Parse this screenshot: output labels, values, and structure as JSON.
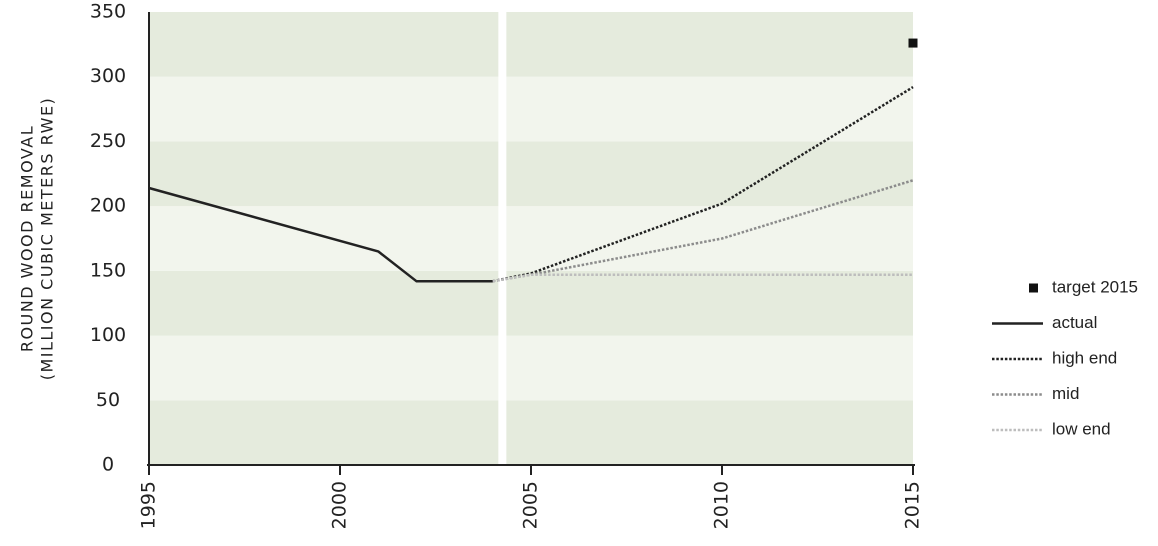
{
  "chart_data": {
    "type": "line",
    "ylabel_lines": [
      "ROUND WOOD REMOVAL",
      "(MILLION CUBIC METERS RWE)"
    ],
    "xlabel": "",
    "xlim": [
      1995,
      2015
    ],
    "ylim": [
      0,
      350
    ],
    "x_ticks": [
      "1995",
      "2000",
      "2005",
      "2010",
      "2015"
    ],
    "y_ticks": [
      "0",
      "50",
      "100",
      "150",
      "200",
      "250",
      "300",
      "350"
    ],
    "grid": "alternating horizontal bands",
    "projection_divider_year": 2004.25,
    "series": [
      {
        "name": "actual",
        "style": "solid",
        "color": "#222222",
        "x": [
          1995,
          2001,
          2002,
          2004
        ],
        "y": [
          214,
          165,
          142,
          142
        ]
      },
      {
        "name": "high end",
        "style": "dotted",
        "color": "#222222",
        "x": [
          2004,
          2005,
          2010,
          2015
        ],
        "y": [
          142,
          148,
          202,
          292
        ]
      },
      {
        "name": "mid",
        "style": "dotted",
        "color": "#8c8c8c",
        "x": [
          2004,
          2005,
          2010,
          2015
        ],
        "y": [
          142,
          147,
          175,
          220
        ]
      },
      {
        "name": "low end",
        "style": "dotted",
        "color": "#bdbdbd",
        "x": [
          2004,
          2005,
          2015
        ],
        "y": [
          142,
          147,
          147
        ]
      }
    ],
    "points": [
      {
        "name": "target 2015",
        "x": 2015,
        "y": 326,
        "marker": "square",
        "color": "#111111"
      }
    ],
    "legend_position": "right",
    "legend": [
      {
        "label": "target 2015",
        "marker": "square",
        "color": "#111111"
      },
      {
        "label": "actual",
        "marker": "solid",
        "color": "#222222"
      },
      {
        "label": "high end",
        "marker": "dotted",
        "color": "#222222"
      },
      {
        "label": "mid",
        "marker": "dotted",
        "color": "#8c8c8c"
      },
      {
        "label": "low end",
        "marker": "dotted",
        "color": "#bdbdbd"
      }
    ],
    "colors": {
      "band_dark": "#e5ebdd",
      "band_light": "#f2f5ed"
    }
  }
}
